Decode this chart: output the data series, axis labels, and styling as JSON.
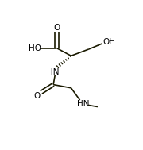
{
  "bg_color": "#ffffff",
  "bond_color": "#1a1a00",
  "figsize": [
    1.8,
    1.89
  ],
  "dpi": 100,
  "xlim": [
    0,
    10
  ],
  "ylim": [
    0,
    10
  ]
}
